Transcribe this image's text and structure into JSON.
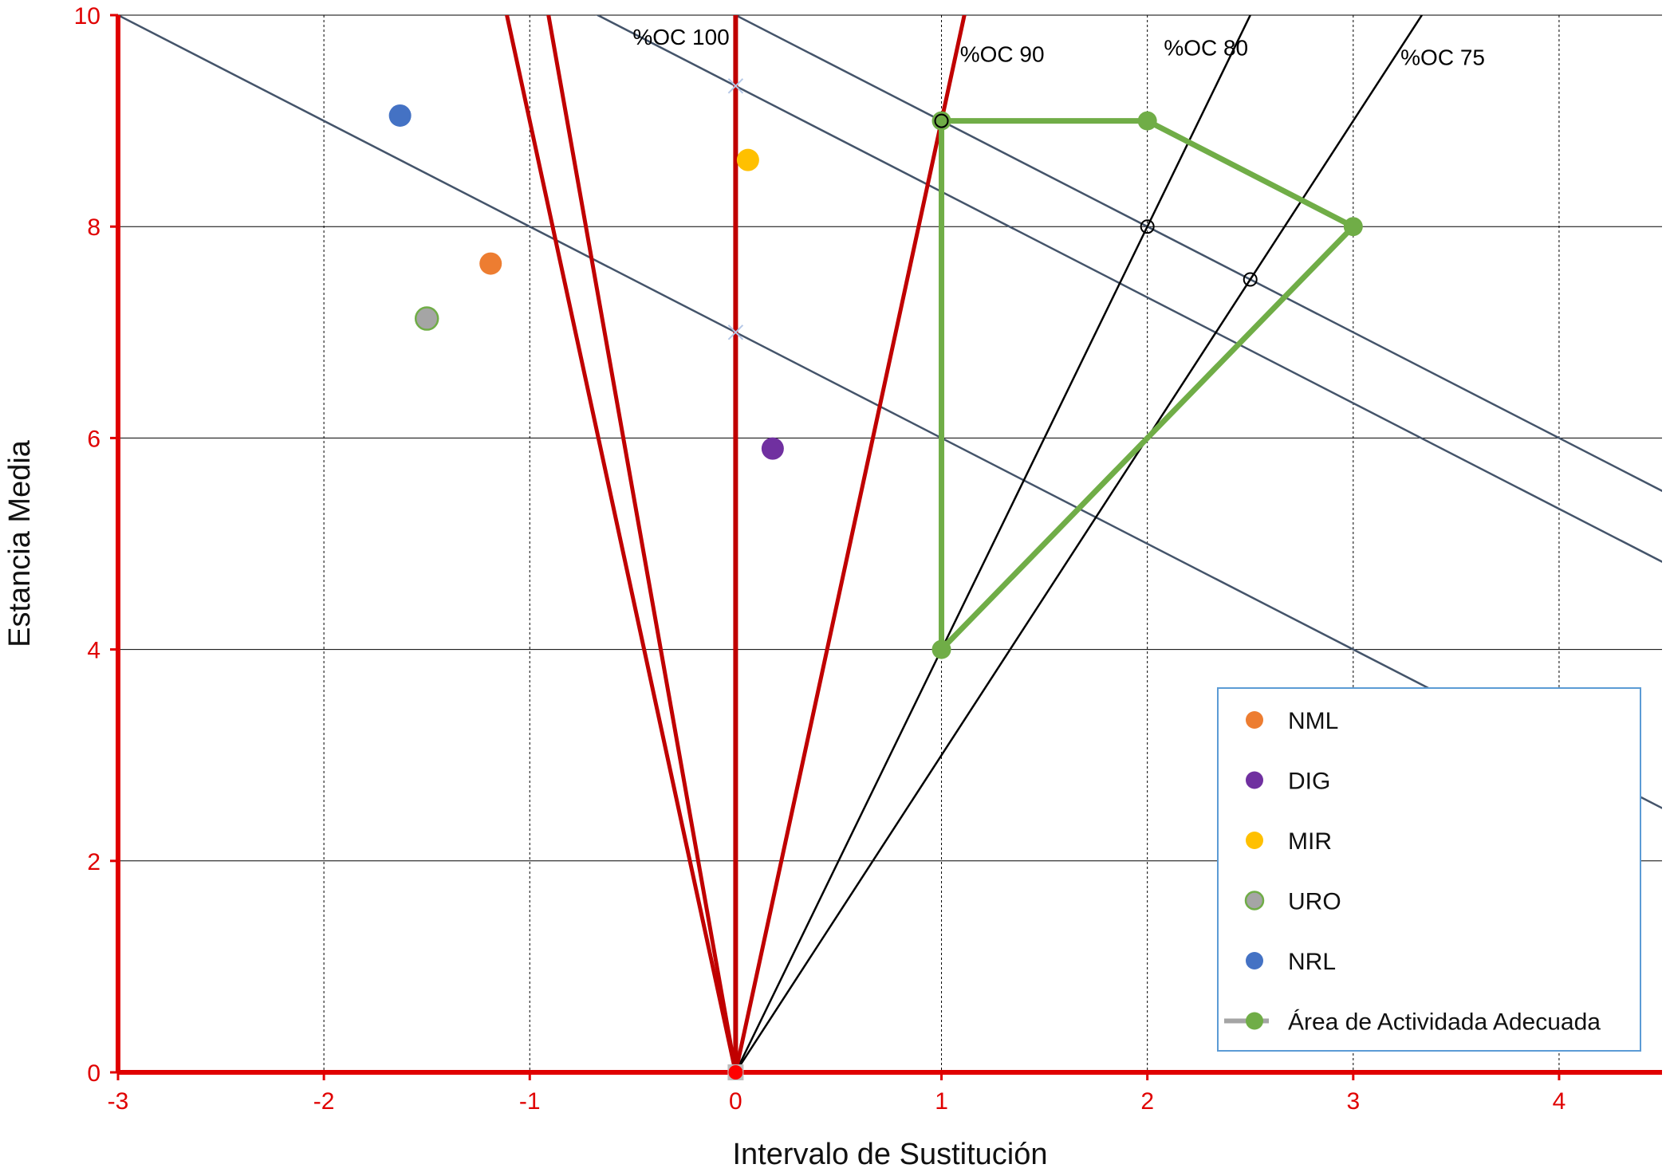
{
  "chart_data": {
    "type": "scatter",
    "xlabel": "Intervalo de Sustitución",
    "ylabel": "Estancia Media",
    "xlim": [
      -3,
      4.5
    ],
    "ylim": [
      0,
      10
    ],
    "x_ticks": [
      "-3",
      "-2",
      "-1",
      "0",
      "1",
      "2",
      "3",
      "4"
    ],
    "y_ticks": [
      "0",
      "2",
      "4",
      "6",
      "8",
      "10"
    ],
    "grid": true,
    "legend_position": "bottom-right",
    "series": [
      {
        "name": "NML",
        "color": "#ed7d31",
        "points": [
          [
            -1.19,
            7.65
          ]
        ]
      },
      {
        "name": "DIG",
        "color": "#7030a0",
        "points": [
          [
            0.18,
            5.9
          ]
        ]
      },
      {
        "name": "MIR",
        "color": "#ffc000",
        "points": [
          [
            0.06,
            8.63
          ]
        ]
      },
      {
        "name": "URO",
        "color": "#a5a5a5",
        "edge_color": "#70ad47",
        "points": [
          [
            -1.5,
            7.13
          ]
        ]
      },
      {
        "name": "NRL",
        "color": "#4472c4",
        "points": [
          [
            -1.63,
            9.05
          ]
        ]
      },
      {
        "name": "Área de Actividada Adecuada",
        "color": "#70ad47",
        "legend_line_color": "#a5a5a5",
        "points": [
          [
            1,
            4
          ],
          [
            1,
            9
          ],
          [
            2,
            9
          ],
          [
            3,
            8
          ],
          [
            1,
            4
          ]
        ]
      }
    ],
    "occupancy_lines": [
      {
        "label": "%OC 100",
        "slope": null
      },
      {
        "label": "%OC 90",
        "slope": 9
      },
      {
        "label": "%OC 80",
        "slope": 4
      },
      {
        "label": "%OC 75",
        "slope": 3
      }
    ],
    "red_lines": [
      {
        "slope": -9,
        "color": "#c00000"
      },
      {
        "slope": -11,
        "color": "#c00000"
      },
      {
        "slope": null,
        "color": "#c00000"
      },
      {
        "slope": 9,
        "color": "#c00000"
      }
    ],
    "slate_lines": [
      {
        "intercept": 10,
        "slope": -1,
        "color": "#44546a"
      },
      {
        "intercept": 9.33,
        "slope": -1,
        "color": "#44546a"
      },
      {
        "intercept": 7,
        "slope": -1,
        "color": "#44546a"
      }
    ],
    "markers": [
      {
        "kind": "open-circle",
        "x": 1,
        "y": 9
      },
      {
        "kind": "open-circle",
        "x": 2,
        "y": 8
      },
      {
        "kind": "open-circle",
        "x": 2.5,
        "y": 7.5
      },
      {
        "kind": "cross",
        "x": 0,
        "y": 9.33
      },
      {
        "kind": "cross",
        "x": 0,
        "y": 7
      },
      {
        "kind": "origin-dot",
        "x": 0,
        "y": 0
      }
    ],
    "axis_color": "#e00000"
  }
}
